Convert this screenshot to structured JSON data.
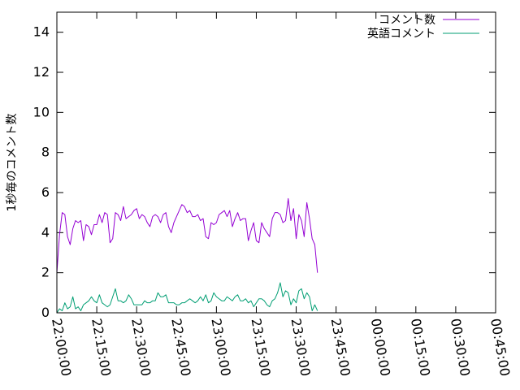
{
  "chart_data": {
    "type": "line",
    "title": "",
    "xlabel": "",
    "ylabel": "1秒毎のコメント数",
    "x_range": [
      "22:00:00",
      "00:45:00"
    ],
    "ylim": [
      0,
      15
    ],
    "x_ticks": [
      "22:00:00",
      "22:15:00",
      "22:30:00",
      "22:45:00",
      "23:00:00",
      "23:15:00",
      "23:30:00",
      "23:45:00",
      "00:00:00",
      "00:15:00",
      "00:30:00",
      "00:45:00"
    ],
    "y_ticks": [
      0,
      2,
      4,
      6,
      8,
      10,
      12,
      14
    ],
    "grid": false,
    "legend_position": "top-right",
    "x_interval_minutes": 1,
    "series": [
      {
        "name": "コメント数",
        "color": "#9400d3",
        "values": [
          2.0,
          3.9,
          5.0,
          4.9,
          3.8,
          3.4,
          4.2,
          4.6,
          4.5,
          4.6,
          3.6,
          4.4,
          4.3,
          3.9,
          4.4,
          4.4,
          4.9,
          4.5,
          5.0,
          4.9,
          3.5,
          3.7,
          5.0,
          4.9,
          4.6,
          5.3,
          4.7,
          4.8,
          4.9,
          5.1,
          5.2,
          4.7,
          4.9,
          4.8,
          4.5,
          4.3,
          4.8,
          4.9,
          4.8,
          4.5,
          4.9,
          5.0,
          4.3,
          4.0,
          4.5,
          4.8,
          5.1,
          5.4,
          5.3,
          5.0,
          5.1,
          4.8,
          4.8,
          4.9,
          4.6,
          4.7,
          3.8,
          3.7,
          4.5,
          4.4,
          4.5,
          4.9,
          5.0,
          5.1,
          4.8,
          5.1,
          4.3,
          4.7,
          5.0,
          4.6,
          4.7,
          4.7,
          3.6,
          4.1,
          4.5,
          3.6,
          3.5,
          4.5,
          4.2,
          4.0,
          3.8,
          4.7,
          5.0,
          5.0,
          4.9,
          4.5,
          4.6,
          5.7,
          4.6,
          5.2,
          3.7,
          4.9,
          4.6,
          3.8,
          5.5,
          4.7,
          3.7,
          3.4,
          2.0
        ]
      },
      {
        "name": "英語コメント",
        "color": "#009e73",
        "values": [
          0.0,
          0.2,
          0.1,
          0.5,
          0.2,
          0.3,
          0.8,
          0.2,
          0.3,
          0.1,
          0.4,
          0.5,
          0.6,
          0.8,
          0.6,
          0.5,
          0.9,
          0.5,
          0.4,
          0.3,
          0.4,
          0.8,
          1.2,
          0.6,
          0.6,
          0.5,
          0.6,
          0.9,
          0.7,
          0.4,
          0.4,
          0.4,
          0.4,
          0.6,
          0.5,
          0.5,
          0.6,
          0.6,
          1.0,
          0.8,
          0.8,
          0.9,
          0.5,
          0.5,
          0.5,
          0.4,
          0.4,
          0.5,
          0.5,
          0.6,
          0.7,
          0.6,
          0.5,
          0.6,
          0.8,
          0.6,
          0.9,
          0.5,
          0.6,
          1.0,
          0.8,
          0.7,
          0.6,
          0.6,
          0.8,
          0.7,
          0.6,
          0.8,
          0.9,
          0.6,
          0.6,
          0.7,
          0.5,
          0.6,
          0.3,
          0.5,
          0.7,
          0.7,
          0.6,
          0.4,
          0.3,
          0.6,
          0.7,
          1.0,
          1.5,
          0.8,
          1.1,
          1.0,
          0.4,
          0.7,
          0.5,
          1.1,
          1.2,
          0.7,
          1.0,
          0.8,
          0.1,
          0.4,
          0.1
        ]
      }
    ]
  }
}
